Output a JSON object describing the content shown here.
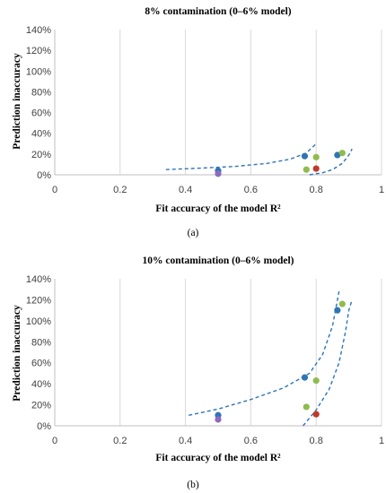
{
  "chart_data": [
    {
      "type": "scatter",
      "panel_label": "(a)",
      "title": "8% contamination (0–6% model)",
      "xlabel": "Fit accuracy of the model R²",
      "ylabel": "Prediction inaccuracy",
      "xlim": [
        0,
        1
      ],
      "ylim": [
        0,
        140
      ],
      "x_ticks": [
        0,
        0.2,
        0.4,
        0.6,
        0.8,
        1
      ],
      "x_tick_labels": [
        "0",
        "0.2",
        "0.4",
        "0.6",
        "0.8",
        "1"
      ],
      "y_ticks": [
        0,
        20,
        40,
        60,
        80,
        100,
        120,
        140
      ],
      "y_tick_labels": [
        "0%",
        "20%",
        "40%",
        "60%",
        "80%",
        "100%",
        "120%",
        "140%"
      ],
      "grid": "vertical",
      "points": [
        {
          "x": 0.5,
          "y": 4,
          "color": "#2e75b6"
        },
        {
          "x": 0.5,
          "y": 1,
          "color": "#8e6bbf"
        },
        {
          "x": 0.765,
          "y": 18,
          "color": "#2e75b6"
        },
        {
          "x": 0.8,
          "y": 17,
          "color": "#8fbc4e"
        },
        {
          "x": 0.77,
          "y": 5,
          "color": "#8fbc4e"
        },
        {
          "x": 0.8,
          "y": 6,
          "color": "#c0392b"
        },
        {
          "x": 0.865,
          "y": 19,
          "color": "#2e75b6"
        },
        {
          "x": 0.88,
          "y": 21,
          "color": "#8fbc4e"
        }
      ],
      "bounds": [
        {
          "x": [
            0.34,
            0.45,
            0.55,
            0.65,
            0.72,
            0.77,
            0.8
          ],
          "y": [
            5,
            6.5,
            8,
            11,
            15,
            21,
            30
          ]
        },
        {
          "x": [
            0.78,
            0.82,
            0.85,
            0.88,
            0.9,
            0.91
          ],
          "y": [
            0,
            2,
            5,
            11,
            19,
            25
          ]
        }
      ]
    },
    {
      "type": "scatter",
      "panel_label": "(b)",
      "title": "10% contamination (0–6% model)",
      "xlabel": "Fit accuracy of the model R²",
      "ylabel": "Prediction inaccuracy",
      "xlim": [
        0,
        1
      ],
      "ylim": [
        0,
        140
      ],
      "x_ticks": [
        0,
        0.2,
        0.4,
        0.6,
        0.8,
        1
      ],
      "x_tick_labels": [
        "0",
        "0.2",
        "0.4",
        "0.6",
        "0.8",
        "1"
      ],
      "y_ticks": [
        0,
        20,
        40,
        60,
        80,
        100,
        120,
        140
      ],
      "y_tick_labels": [
        "0%",
        "20%",
        "40%",
        "60%",
        "80%",
        "100%",
        "120%",
        "140%"
      ],
      "grid": "vertical",
      "points": [
        {
          "x": 0.5,
          "y": 10,
          "color": "#2e75b6"
        },
        {
          "x": 0.5,
          "y": 6,
          "color": "#8e6bbf"
        },
        {
          "x": 0.765,
          "y": 46,
          "color": "#2e75b6"
        },
        {
          "x": 0.8,
          "y": 43,
          "color": "#8fbc4e"
        },
        {
          "x": 0.77,
          "y": 18,
          "color": "#8fbc4e"
        },
        {
          "x": 0.8,
          "y": 11,
          "color": "#c0392b"
        },
        {
          "x": 0.865,
          "y": 110,
          "color": "#2e75b6"
        },
        {
          "x": 0.88,
          "y": 116,
          "color": "#8fbc4e"
        }
      ],
      "bounds": [
        {
          "x": [
            0.41,
            0.5,
            0.6,
            0.7,
            0.78,
            0.82,
            0.85,
            0.87
          ],
          "y": [
            10,
            16,
            25,
            36,
            50,
            68,
            95,
            128
          ]
        },
        {
          "x": [
            0.76,
            0.8,
            0.84,
            0.87,
            0.89,
            0.9,
            0.91
          ],
          "y": [
            0,
            15,
            35,
            60,
            90,
            110,
            120
          ]
        }
      ]
    }
  ]
}
